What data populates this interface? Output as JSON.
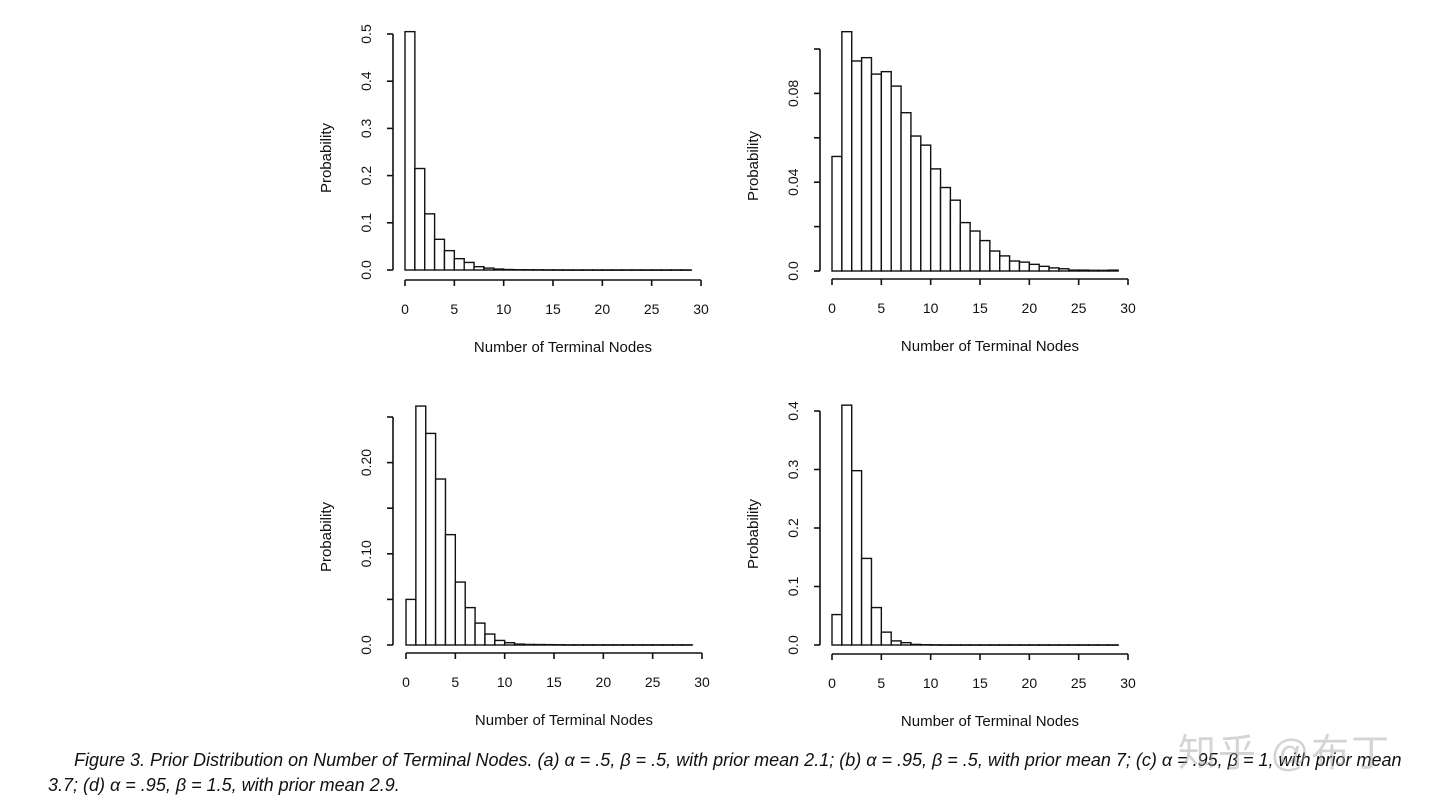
{
  "chart_data": [
    {
      "type": "bar",
      "panel": "a",
      "xlabel": "Number of Terminal Nodes",
      "ylabel": "Probability",
      "xlim": [
        0,
        30
      ],
      "ylim": [
        0,
        0.5
      ],
      "xticks": [
        "0",
        "5",
        "10",
        "15",
        "20",
        "25",
        "30"
      ],
      "yticks": [
        "0.0",
        "0.1",
        "0.2",
        "0.3",
        "0.4",
        "0.5"
      ],
      "ytick_values": [
        0,
        0.1,
        0.2,
        0.3,
        0.4,
        0.5
      ],
      "bin_start": 0,
      "values": [
        0.505,
        0.215,
        0.119,
        0.065,
        0.041,
        0.024,
        0.016,
        0.007,
        0.004,
        0.002,
        0.001,
        0.0006,
        0.0005,
        0.0004,
        0.0003,
        0.0003,
        0.0002,
        0.0002,
        0.0002,
        0.0002,
        0.0002,
        0.0002,
        0.0002,
        0.0002,
        0.0002,
        0.0002,
        0.0002,
        0.0002,
        0.0002
      ]
    },
    {
      "type": "bar",
      "panel": "b",
      "xlabel": "Number of Terminal Nodes",
      "ylabel": "Probability",
      "xlim": [
        0,
        30
      ],
      "ylim": [
        0,
        0.1
      ],
      "xticks": [
        "0",
        "5",
        "10",
        "15",
        "20",
        "25",
        "30"
      ],
      "yticks": [
        "0.0",
        "0.04",
        "0.08"
      ],
      "ytick_values": [
        0,
        0.04,
        0.08
      ],
      "minor_ytick_values": [
        0,
        0.02,
        0.04,
        0.06,
        0.08,
        0.1
      ],
      "bin_start": 0,
      "values": [
        0.0516,
        0.1078,
        0.0946,
        0.0961,
        0.0887,
        0.0898,
        0.0833,
        0.0713,
        0.0608,
        0.0567,
        0.046,
        0.0376,
        0.0319,
        0.0218,
        0.018,
        0.0137,
        0.009,
        0.0068,
        0.0045,
        0.004,
        0.003,
        0.0021,
        0.0014,
        0.001,
        0.0004,
        0.0004,
        0.0003,
        0.0003,
        0.0004
      ]
    },
    {
      "type": "bar",
      "panel": "c",
      "xlabel": "Number of Terminal Nodes",
      "ylabel": "Probability",
      "xlim": [
        0,
        30
      ],
      "ylim": [
        0,
        0.25
      ],
      "xticks": [
        "0",
        "5",
        "10",
        "15",
        "20",
        "25",
        "30"
      ],
      "yticks": [
        "0.0",
        "0.10",
        "0.20"
      ],
      "ytick_values": [
        0,
        0.1,
        0.2
      ],
      "minor_ytick_values": [
        0,
        0.05,
        0.1,
        0.15,
        0.2,
        0.25
      ],
      "bin_start": 0,
      "values": [
        0.05,
        0.262,
        0.232,
        0.182,
        0.121,
        0.069,
        0.041,
        0.024,
        0.012,
        0.005,
        0.0025,
        0.001,
        0.0006,
        0.0005,
        0.0004,
        0.0003,
        0.0002,
        0.0002,
        0.0002,
        0.0002,
        0.0002,
        0.0002,
        0.0002,
        0.0002,
        0.0002,
        0.0002,
        0.0002,
        0.0002,
        0.0002
      ]
    },
    {
      "type": "bar",
      "panel": "d",
      "xlabel": "Number of Terminal Nodes",
      "ylabel": "Probability",
      "xlim": [
        0,
        30
      ],
      "ylim": [
        0,
        0.4
      ],
      "xticks": [
        "0",
        "5",
        "10",
        "15",
        "20",
        "25",
        "30"
      ],
      "yticks": [
        "0.0",
        "0.1",
        "0.2",
        "0.3",
        "0.4"
      ],
      "ytick_values": [
        0,
        0.1,
        0.2,
        0.3,
        0.4
      ],
      "bin_start": 0,
      "values": [
        0.052,
        0.41,
        0.298,
        0.148,
        0.064,
        0.022,
        0.007,
        0.004,
        0.001,
        0.0005,
        0.0003,
        0.0002,
        0.0002,
        0.0002,
        0.0002,
        0.0002,
        0.0002,
        0.0002,
        0.0002,
        0.0002,
        0.0002,
        0.0002,
        0.0002,
        0.0002,
        0.0002,
        0.0002,
        0.0002,
        0.0002,
        0.0002
      ]
    }
  ],
  "caption": "Figure 3.  Prior Distribution on Number of Terminal Nodes. (a) α = .5, β = .5, with prior mean 2.1; (b) α = .95, β = .5, with prior mean 7; (c) α = .95, β = 1, with prior mean 3.7; (d) α = .95, β = 1.5, with prior mean 2.9.",
  "watermark": "知乎 @布丁",
  "colors": {
    "ink": "#111111",
    "bar_fill": "#ffffff",
    "watermark": "#a0a0a0"
  }
}
